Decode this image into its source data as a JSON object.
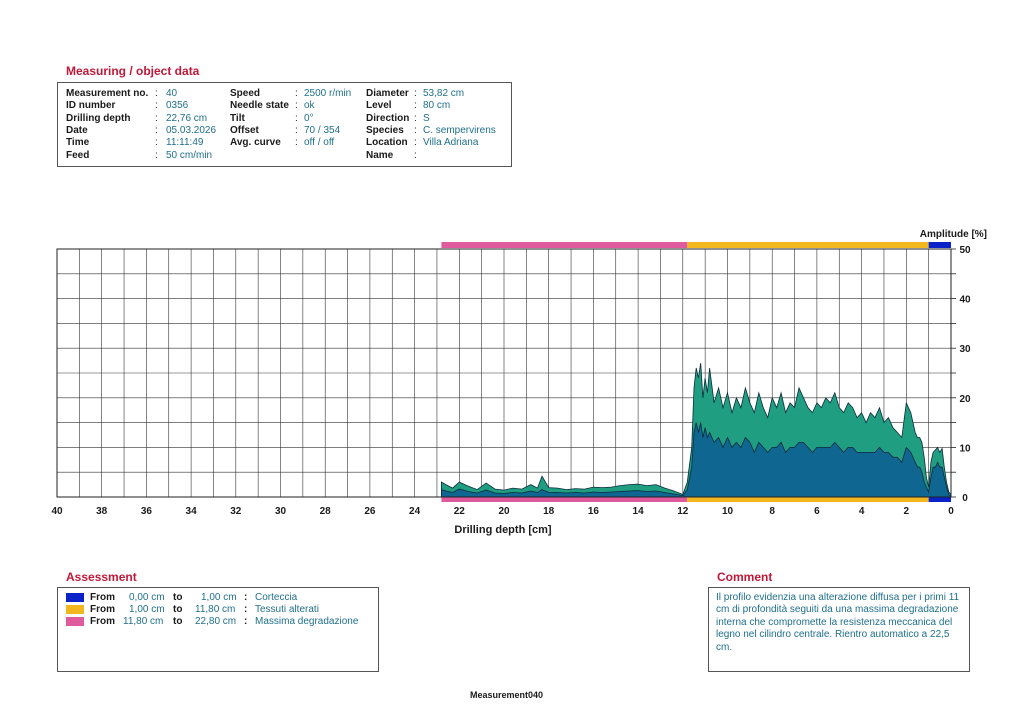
{
  "header": {
    "title": "Measuring / object data",
    "fields": [
      {
        "label": "Measurement no.",
        "value": "40"
      },
      {
        "label": "ID number",
        "value": "0356"
      },
      {
        "label": "Drilling depth",
        "value": "22,76 cm"
      },
      {
        "label": "Date",
        "value": "05.03.2026"
      },
      {
        "label": "Time",
        "value": "11:11:49"
      },
      {
        "label": "Feed",
        "value": "50 cm/min"
      },
      {
        "label": "Speed",
        "value": "2500 r/min"
      },
      {
        "label": "Needle state",
        "value": "ok"
      },
      {
        "label": "Tilt",
        "value": "0°"
      },
      {
        "label": "Offset",
        "value": "70 / 354"
      },
      {
        "label": "Avg. curve",
        "value": "off / off"
      },
      {
        "label": "Diameter",
        "value": "53,82 cm"
      },
      {
        "label": "Level",
        "value": "80 cm"
      },
      {
        "label": "Direction",
        "value": "S"
      },
      {
        "label": "Species",
        "value": "C. sempervirens"
      },
      {
        "label": "Location",
        "value": "Villa Adriana"
      },
      {
        "label": "Name",
        "value": ""
      }
    ]
  },
  "chart_data": {
    "type": "area",
    "xlabel": "Drilling depth [cm]",
    "ylabel": "Amplitude [%]",
    "x_range": [
      40,
      0
    ],
    "y_range": [
      0,
      50
    ],
    "x_ticks": [
      "40",
      "38",
      "36",
      "34",
      "32",
      "30",
      "28",
      "26",
      "24",
      "22",
      "20",
      "18",
      "16",
      "14",
      "12",
      "10",
      "8",
      "6",
      "4",
      "2",
      "0"
    ],
    "y_ticks": [
      "0",
      "10",
      "20",
      "30",
      "40",
      "50"
    ],
    "grid": true,
    "colors": {
      "drilling": "#1f9e82",
      "feed": "#0f6690",
      "outline": "#0b2b3a",
      "grid": "#333333"
    },
    "series": [
      {
        "key": "drilling",
        "x": [
          22.8,
          22.6,
          22.3,
          22.0,
          21.6,
          21.2,
          20.8,
          20.4,
          20.0,
          19.6,
          19.2,
          18.8,
          18.5,
          18.3,
          18.0,
          17.6,
          17.2,
          16.8,
          16.4,
          16.0,
          15.6,
          15.2,
          14.8,
          14.4,
          14.0,
          13.6,
          13.2,
          12.8,
          12.4,
          12.0,
          11.8,
          11.6,
          11.5,
          11.4,
          11.3,
          11.2,
          11.1,
          11.0,
          10.9,
          10.8,
          10.6,
          10.4,
          10.2,
          10.0,
          9.8,
          9.6,
          9.4,
          9.2,
          9.0,
          8.8,
          8.6,
          8.4,
          8.2,
          8.0,
          7.8,
          7.6,
          7.4,
          7.2,
          7.0,
          6.8,
          6.6,
          6.4,
          6.2,
          6.0,
          5.8,
          5.6,
          5.4,
          5.2,
          5.0,
          4.8,
          4.6,
          4.4,
          4.2,
          4.0,
          3.8,
          3.6,
          3.4,
          3.2,
          3.0,
          2.8,
          2.6,
          2.4,
          2.2,
          2.0,
          1.8,
          1.6,
          1.5,
          1.4,
          1.3,
          1.2,
          1.1,
          1.0,
          0.9,
          0.8,
          0.7,
          0.6,
          0.5,
          0.4,
          0.3,
          0.2,
          0.1,
          0.0
        ],
        "y": [
          3.0,
          2.5,
          1.8,
          3.0,
          2.2,
          1.5,
          2.8,
          1.6,
          1.4,
          1.8,
          1.6,
          2.5,
          1.8,
          4.2,
          1.9,
          1.8,
          1.5,
          1.7,
          1.6,
          2.0,
          1.9,
          2.0,
          2.3,
          2.5,
          2.6,
          2.3,
          2.5,
          1.8,
          1.2,
          0.5,
          3.0,
          10.0,
          22.0,
          26.0,
          24.0,
          27.0,
          20.0,
          24.0,
          21.0,
          26.0,
          19.0,
          22.0,
          18.0,
          21.0,
          17.0,
          20.0,
          18.0,
          22.0,
          19.0,
          17.0,
          21.0,
          18.0,
          16.0,
          20.0,
          18.0,
          21.0,
          17.0,
          19.0,
          18.0,
          22.0,
          20.0,
          18.0,
          17.0,
          19.0,
          18.0,
          20.0,
          19.0,
          21.0,
          18.0,
          17.0,
          19.0,
          18.0,
          16.0,
          17.0,
          15.0,
          17.0,
          16.0,
          18.0,
          15.0,
          16.0,
          14.0,
          13.0,
          12.0,
          19.0,
          17.0,
          13.0,
          12.0,
          12.0,
          11.0,
          8.0,
          4.0,
          2.0,
          7.0,
          9.0,
          9.5,
          10.0,
          9.0,
          9.8,
          6.0,
          3.0,
          1.0,
          0.5
        ]
      },
      {
        "key": "feed",
        "x": [
          22.8,
          22.6,
          22.3,
          22.0,
          21.6,
          21.2,
          20.8,
          20.4,
          20.0,
          19.6,
          19.2,
          18.8,
          18.5,
          18.3,
          18.0,
          17.6,
          17.2,
          16.8,
          16.4,
          16.0,
          15.6,
          15.2,
          14.8,
          14.4,
          14.0,
          13.6,
          13.2,
          12.8,
          12.4,
          12.0,
          11.8,
          11.6,
          11.5,
          11.4,
          11.3,
          11.2,
          11.1,
          11.0,
          10.9,
          10.8,
          10.6,
          10.4,
          10.2,
          10.0,
          9.8,
          9.6,
          9.4,
          9.2,
          9.0,
          8.8,
          8.6,
          8.4,
          8.2,
          8.0,
          7.8,
          7.6,
          7.4,
          7.2,
          7.0,
          6.8,
          6.6,
          6.4,
          6.2,
          6.0,
          5.8,
          5.6,
          5.4,
          5.2,
          5.0,
          4.8,
          4.6,
          4.4,
          4.2,
          4.0,
          3.8,
          3.6,
          3.4,
          3.2,
          3.0,
          2.8,
          2.6,
          2.4,
          2.2,
          2.0,
          1.8,
          1.6,
          1.5,
          1.4,
          1.3,
          1.2,
          1.1,
          1.0,
          0.9,
          0.8,
          0.7,
          0.6,
          0.5,
          0.4,
          0.3,
          0.2,
          0.1,
          0.0
        ],
        "y": [
          1.5,
          1.2,
          0.9,
          1.6,
          1.1,
          0.8,
          1.4,
          0.8,
          0.7,
          0.9,
          0.8,
          1.2,
          0.9,
          1.5,
          0.9,
          0.9,
          0.8,
          0.9,
          0.8,
          1.0,
          0.9,
          1.0,
          1.1,
          1.2,
          1.3,
          1.1,
          1.2,
          0.9,
          0.6,
          0.3,
          1.5,
          6.0,
          13.0,
          15.0,
          13.0,
          15.0,
          12.0,
          14.0,
          12.0,
          13.0,
          11.0,
          12.0,
          10.0,
          12.0,
          10.0,
          11.0,
          10.0,
          12.0,
          11.0,
          9.0,
          11.0,
          10.0,
          9.0,
          10.0,
          10.0,
          11.0,
          9.0,
          10.0,
          10.0,
          11.0,
          11.0,
          10.0,
          9.0,
          10.0,
          10.0,
          10.0,
          10.0,
          11.0,
          10.0,
          9.0,
          10.0,
          10.0,
          9.0,
          9.0,
          9.0,
          9.0,
          9.0,
          10.0,
          9.0,
          9.0,
          8.0,
          8.0,
          7.0,
          10.0,
          9.0,
          7.0,
          6.0,
          6.0,
          5.0,
          3.0,
          2.0,
          1.0,
          4.0,
          6.0,
          6.0,
          7.0,
          6.0,
          6.0,
          4.0,
          2.0,
          0.5,
          0.2
        ]
      }
    ],
    "segments": [
      {
        "from": 11.8,
        "to": 22.8,
        "color": "#e05a9e"
      },
      {
        "from": 1.0,
        "to": 11.8,
        "color": "#f2b71e"
      },
      {
        "from": 0.0,
        "to": 1.0,
        "color": "#0a23c8"
      }
    ]
  },
  "assessment": {
    "title": "Assessment",
    "rows": [
      {
        "color": "#0a23c8",
        "from_word": "From",
        "from": "0,00 cm",
        "to_word": "to",
        "to": "1,00 cm",
        "colon": ":",
        "label": "Corteccia"
      },
      {
        "color": "#f2b71e",
        "from_word": "From",
        "from": "1,00 cm",
        "to_word": "to",
        "to": "11,80 cm",
        "colon": ":",
        "label": "Tessuti alterati"
      },
      {
        "color": "#e05a9e",
        "from_word": "From",
        "from": "11,80 cm",
        "to_word": "to",
        "to": "22,80 cm",
        "colon": ":",
        "label": "Massima degradazione"
      }
    ]
  },
  "comment": {
    "title": "Comment",
    "text": "Il profilo evidenzia una alterazione diffusa per i primi 11 cm di profondità seguiti da una massima degradazione interna che compromette la resistenza meccanica del legno nel cilindro centrale. Rientro automatico a 22,5 cm."
  },
  "footer": {
    "label": "Measurement040"
  },
  "colors": {
    "section_title": "#c0193a",
    "value_text": "#1f6f8b"
  }
}
